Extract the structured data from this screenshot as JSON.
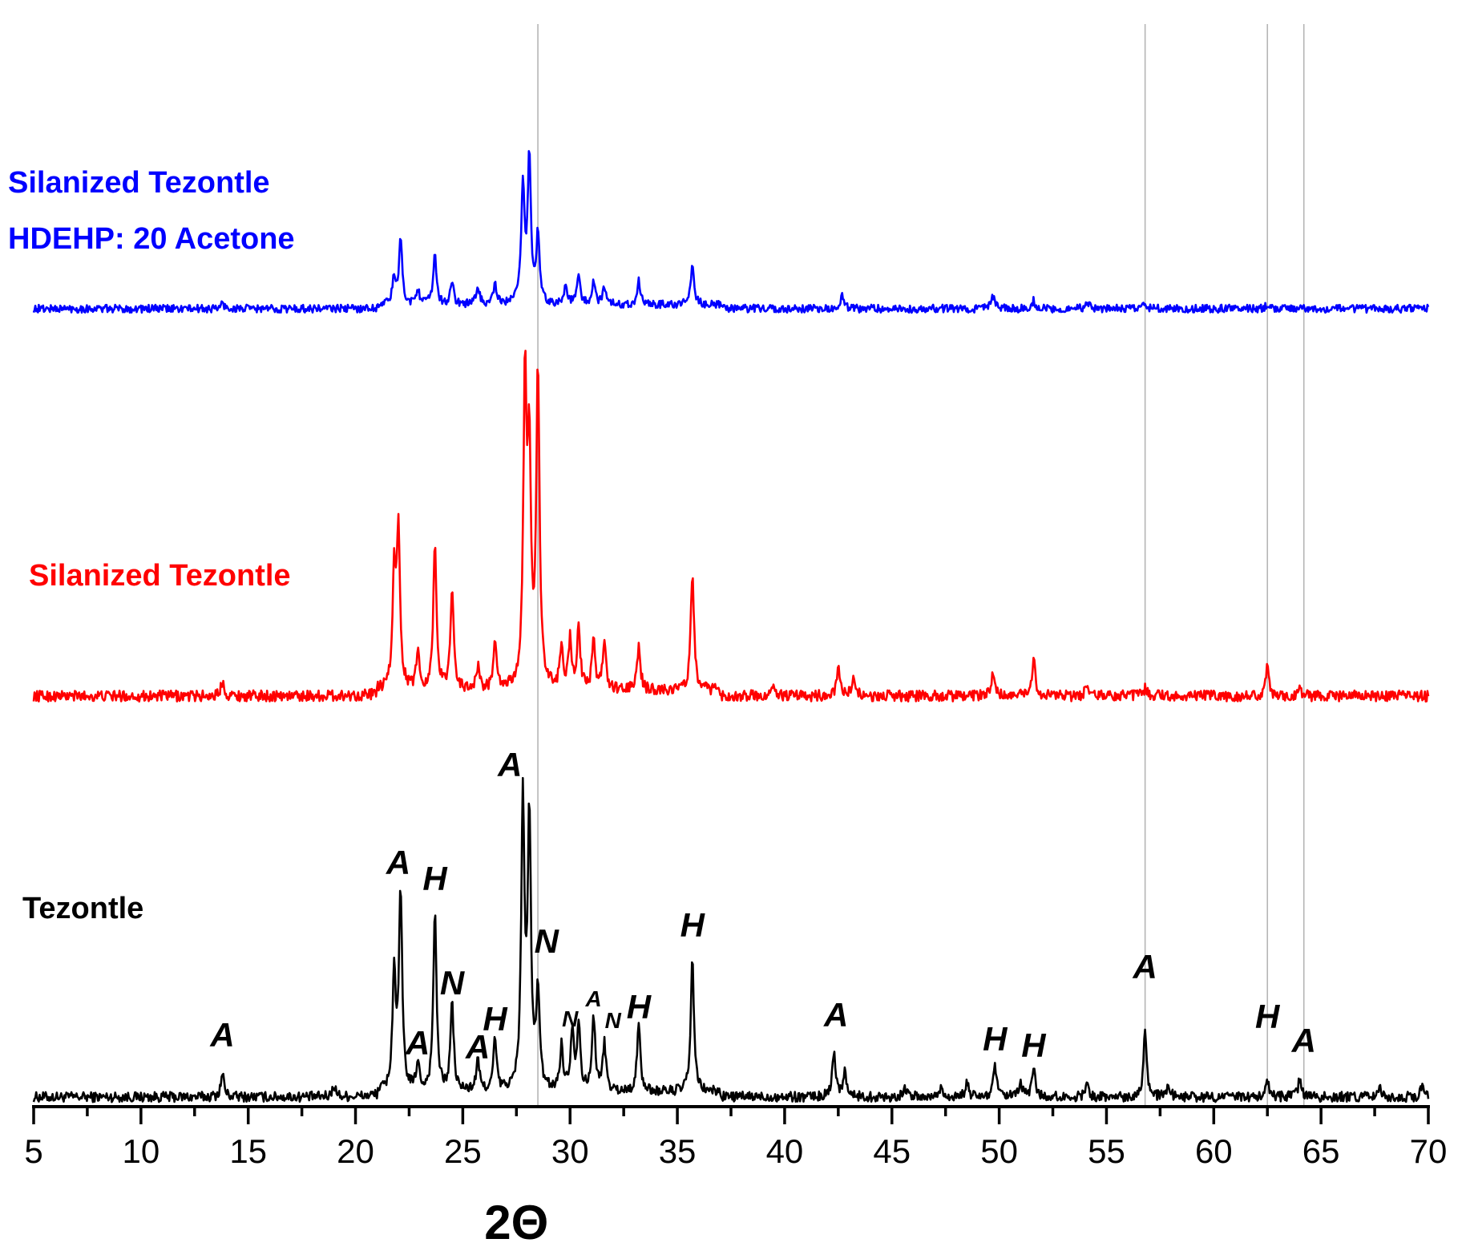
{
  "chart_data": {
    "type": "line",
    "xlabel": "2Θ",
    "ylabel": "",
    "xlim": [
      5,
      70
    ],
    "xticks": [
      5,
      10,
      15,
      20,
      25,
      30,
      35,
      40,
      45,
      50,
      55,
      60,
      65,
      70
    ],
    "reference_lines_x": [
      28.5,
      56.8,
      62.5,
      64.2
    ],
    "series": [
      {
        "name": "Tezontle",
        "color": "#000000",
        "peaks": [
          {
            "x": 13.8,
            "height": 0.07
          },
          {
            "x": 19.0,
            "height": 0.035
          },
          {
            "x": 21.8,
            "height": 0.35
          },
          {
            "x": 22.1,
            "height": 0.58
          },
          {
            "x": 22.9,
            "height": 0.08
          },
          {
            "x": 23.7,
            "height": 0.53
          },
          {
            "x": 24.5,
            "height": 0.26
          },
          {
            "x": 25.7,
            "height": 0.09
          },
          {
            "x": 26.5,
            "height": 0.15
          },
          {
            "x": 27.8,
            "height": 0.85
          },
          {
            "x": 28.1,
            "height": 0.8
          },
          {
            "x": 28.5,
            "height": 0.29
          },
          {
            "x": 29.6,
            "height": 0.13
          },
          {
            "x": 30.1,
            "height": 0.18
          },
          {
            "x": 30.4,
            "height": 0.2
          },
          {
            "x": 31.1,
            "height": 0.22
          },
          {
            "x": 31.6,
            "height": 0.14
          },
          {
            "x": 33.2,
            "height": 0.2
          },
          {
            "x": 35.7,
            "height": 0.39
          },
          {
            "x": 42.3,
            "height": 0.14
          },
          {
            "x": 42.8,
            "height": 0.08
          },
          {
            "x": 45.6,
            "height": 0.03
          },
          {
            "x": 47.3,
            "height": 0.03
          },
          {
            "x": 48.5,
            "height": 0.04
          },
          {
            "x": 49.8,
            "height": 0.09
          },
          {
            "x": 51.0,
            "height": 0.04
          },
          {
            "x": 51.6,
            "height": 0.09
          },
          {
            "x": 54.1,
            "height": 0.04
          },
          {
            "x": 56.8,
            "height": 0.2
          },
          {
            "x": 57.9,
            "height": 0.03
          },
          {
            "x": 62.5,
            "height": 0.05
          },
          {
            "x": 64.0,
            "height": 0.05
          },
          {
            "x": 67.7,
            "height": 0.03
          },
          {
            "x": 69.7,
            "height": 0.03
          }
        ]
      },
      {
        "name": "Silanized Tezontle",
        "color": "#ff0000",
        "peaks": [
          {
            "x": 13.8,
            "height": 0.04
          },
          {
            "x": 21.8,
            "height": 0.3
          },
          {
            "x": 22.0,
            "height": 0.43
          },
          {
            "x": 22.9,
            "height": 0.1
          },
          {
            "x": 23.7,
            "height": 0.39
          },
          {
            "x": 24.5,
            "height": 0.28
          },
          {
            "x": 25.7,
            "height": 0.06
          },
          {
            "x": 26.5,
            "height": 0.12
          },
          {
            "x": 27.9,
            "height": 0.82
          },
          {
            "x": 28.1,
            "height": 0.6
          },
          {
            "x": 28.5,
            "height": 0.85
          },
          {
            "x": 29.6,
            "height": 0.11
          },
          {
            "x": 30.0,
            "height": 0.13
          },
          {
            "x": 30.4,
            "height": 0.16
          },
          {
            "x": 31.1,
            "height": 0.13
          },
          {
            "x": 31.6,
            "height": 0.13
          },
          {
            "x": 33.2,
            "height": 0.12
          },
          {
            "x": 35.7,
            "height": 0.32
          },
          {
            "x": 39.5,
            "height": 0.03
          },
          {
            "x": 42.5,
            "height": 0.08
          },
          {
            "x": 43.2,
            "height": 0.05
          },
          {
            "x": 49.7,
            "height": 0.06
          },
          {
            "x": 51.6,
            "height": 0.1
          },
          {
            "x": 54.1,
            "height": 0.03
          },
          {
            "x": 56.8,
            "height": 0.02
          },
          {
            "x": 62.5,
            "height": 0.08
          },
          {
            "x": 64.0,
            "height": 0.03
          }
        ]
      },
      {
        "name": "Silanized Tezontle HDEHP: 20 Acetone",
        "color": "#0000ff",
        "peaks": [
          {
            "x": 13.8,
            "height": 0.02
          },
          {
            "x": 21.8,
            "height": 0.1
          },
          {
            "x": 22.1,
            "height": 0.24
          },
          {
            "x": 22.9,
            "height": 0.06
          },
          {
            "x": 23.7,
            "height": 0.19
          },
          {
            "x": 24.5,
            "height": 0.08
          },
          {
            "x": 25.7,
            "height": 0.07
          },
          {
            "x": 26.5,
            "height": 0.07
          },
          {
            "x": 27.8,
            "height": 0.45
          },
          {
            "x": 28.1,
            "height": 0.55
          },
          {
            "x": 28.5,
            "height": 0.25
          },
          {
            "x": 29.8,
            "height": 0.07
          },
          {
            "x": 30.4,
            "height": 0.11
          },
          {
            "x": 31.1,
            "height": 0.08
          },
          {
            "x": 31.6,
            "height": 0.07
          },
          {
            "x": 33.2,
            "height": 0.09
          },
          {
            "x": 35.7,
            "height": 0.16
          },
          {
            "x": 42.7,
            "height": 0.05
          },
          {
            "x": 49.7,
            "height": 0.05
          },
          {
            "x": 51.6,
            "height": 0.03
          },
          {
            "x": 54.1,
            "height": 0.03
          },
          {
            "x": 56.8,
            "height": 0.02
          },
          {
            "x": 62.5,
            "height": 0.02
          }
        ]
      }
    ],
    "series_labels": [
      {
        "lines": [
          "Tezontle"
        ],
        "color": "#000000"
      },
      {
        "lines": [
          "Silanized Tezontle"
        ],
        "color": "#ff0000"
      },
      {
        "lines": [
          "Silanized Tezontle",
          "HDEHP: 20 Acetone"
        ],
        "color": "#0000ff"
      }
    ],
    "annotations": [
      {
        "text": "A",
        "x": 13.8,
        "size": "large"
      },
      {
        "text": "A",
        "x": 22.0,
        "size": "large"
      },
      {
        "text": "A",
        "x": 22.9,
        "size": "large"
      },
      {
        "text": "H",
        "x": 23.7,
        "size": "large"
      },
      {
        "text": "N",
        "x": 24.5,
        "size": "large"
      },
      {
        "text": "A",
        "x": 25.7,
        "size": "large"
      },
      {
        "text": "H",
        "x": 26.5,
        "size": "large"
      },
      {
        "text": "A",
        "x": 27.2,
        "size": "large"
      },
      {
        "text": "N",
        "x": 28.9,
        "size": "large"
      },
      {
        "text": "N",
        "x": 30.0,
        "size": "small"
      },
      {
        "text": "A",
        "x": 31.1,
        "size": "small"
      },
      {
        "text": "N",
        "x": 32.0,
        "size": "small"
      },
      {
        "text": "H",
        "x": 33.2,
        "size": "large"
      },
      {
        "text": "H",
        "x": 35.7,
        "size": "large"
      },
      {
        "text": "A",
        "x": 42.4,
        "size": "large"
      },
      {
        "text": "H",
        "x": 49.8,
        "size": "large"
      },
      {
        "text": "H",
        "x": 51.6,
        "size": "large"
      },
      {
        "text": "A",
        "x": 56.8,
        "size": "large"
      },
      {
        "text": "H",
        "x": 62.5,
        "size": "large"
      },
      {
        "text": "A",
        "x": 64.2,
        "size": "large"
      }
    ]
  }
}
